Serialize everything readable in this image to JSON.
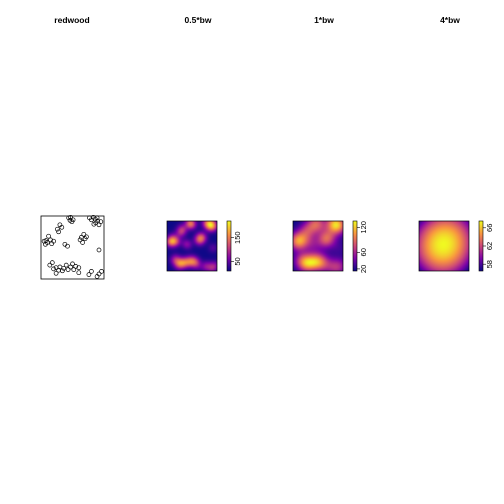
{
  "chart_data": [
    {
      "type": "scatter",
      "title": "redwood",
      "points": [
        [
          0.46,
          0.93
        ],
        [
          0.51,
          0.94
        ],
        [
          0.44,
          0.97
        ],
        [
          0.47,
          0.98
        ],
        [
          0.49,
          0.91
        ],
        [
          0.05,
          0.6
        ],
        [
          0.08,
          0.61
        ],
        [
          0.1,
          0.58
        ],
        [
          0.07,
          0.55
        ],
        [
          0.12,
          0.68
        ],
        [
          0.15,
          0.62
        ],
        [
          0.2,
          0.6
        ],
        [
          0.17,
          0.56
        ],
        [
          0.33,
          0.82
        ],
        [
          0.3,
          0.86
        ],
        [
          0.26,
          0.79
        ],
        [
          0.28,
          0.75
        ],
        [
          0.38,
          0.55
        ],
        [
          0.42,
          0.52
        ],
        [
          0.62,
          0.62
        ],
        [
          0.64,
          0.66
        ],
        [
          0.66,
          0.58
        ],
        [
          0.68,
          0.71
        ],
        [
          0.7,
          0.64
        ],
        [
          0.72,
          0.67
        ],
        [
          0.77,
          0.97
        ],
        [
          0.8,
          0.94
        ],
        [
          0.83,
          0.98
        ],
        [
          0.86,
          0.95
        ],
        [
          0.89,
          0.97
        ],
        [
          0.9,
          0.92
        ],
        [
          0.87,
          0.89
        ],
        [
          0.84,
          0.87
        ],
        [
          0.92,
          0.86
        ],
        [
          0.95,
          0.91
        ],
        [
          0.92,
          0.46
        ],
        [
          0.2,
          0.16
        ],
        [
          0.24,
          0.18
        ],
        [
          0.28,
          0.14
        ],
        [
          0.3,
          0.19
        ],
        [
          0.34,
          0.13
        ],
        [
          0.36,
          0.17
        ],
        [
          0.4,
          0.22
        ],
        [
          0.43,
          0.15
        ],
        [
          0.47,
          0.19
        ],
        [
          0.5,
          0.24
        ],
        [
          0.52,
          0.15
        ],
        [
          0.55,
          0.2
        ],
        [
          0.6,
          0.1
        ],
        [
          0.76,
          0.07
        ],
        [
          0.8,
          0.12
        ],
        [
          0.89,
          0.04
        ],
        [
          0.92,
          0.08
        ],
        [
          0.96,
          0.12
        ],
        [
          0.6,
          0.18
        ],
        [
          0.14,
          0.22
        ],
        [
          0.18,
          0.26
        ],
        [
          0.24,
          0.09
        ]
      ]
    },
    {
      "type": "heatmap",
      "title": "0.5*bw",
      "colorbar_ticks": [
        "50",
        "150"
      ],
      "range": [
        10,
        220
      ]
    },
    {
      "type": "heatmap",
      "title": "1*bw",
      "colorbar_ticks": [
        "20",
        "60",
        "120"
      ],
      "range": [
        15,
        135
      ]
    },
    {
      "type": "heatmap",
      "title": "4*bw",
      "colorbar_ticks": [
        "58",
        "62",
        "66"
      ],
      "range": [
        56.5,
        67.5
      ]
    }
  ]
}
